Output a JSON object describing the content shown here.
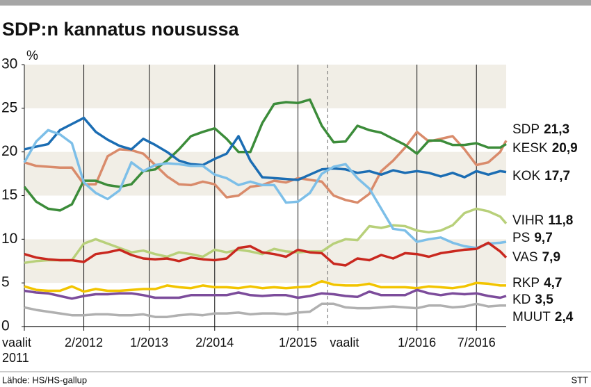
{
  "chart_data": {
    "type": "line",
    "title": "SDP:n kannatus nousussa",
    "y_unit": "%",
    "source": "Lähde: HS/HS-gallup",
    "credit": "STT",
    "x": [
      0,
      2,
      4,
      6,
      8,
      10,
      12,
      14,
      16,
      18,
      20,
      22,
      24,
      26,
      28,
      30,
      32,
      34,
      36,
      38,
      40,
      42,
      44,
      46,
      48,
      50,
      52,
      54,
      56,
      58,
      60,
      62,
      64,
      66,
      68,
      70,
      72,
      74,
      76,
      78,
      80,
      81
    ],
    "xlim": [
      0,
      81
    ],
    "xticks": [
      {
        "value": 0,
        "label": "vaalit 2011"
      },
      {
        "value": 10,
        "label": "2/2012"
      },
      {
        "value": 21,
        "label": "1/2013"
      },
      {
        "value": 32,
        "label": "2/2014"
      },
      {
        "value": 46,
        "label": "1/2015"
      },
      {
        "value": 51,
        "label": "vaalit",
        "dashed": true
      },
      {
        "value": 66,
        "label": "1/2016"
      },
      {
        "value": 76,
        "label": "7/2016"
      }
    ],
    "ylim": [
      0,
      30
    ],
    "yticks": [
      0,
      5,
      10,
      15,
      20,
      25,
      30
    ],
    "series": [
      {
        "name": "SDP",
        "color": "#d98b6b",
        "values": [
          18.8,
          18.4,
          18.3,
          18.2,
          18.2,
          16.3,
          16.3,
          19.5,
          20.3,
          20.2,
          19.8,
          18.5,
          17.2,
          16.3,
          16.2,
          16.6,
          16.3,
          14.8,
          15.0,
          16.0,
          16.2,
          16.7,
          16.5,
          17.0,
          16.8,
          16.6,
          15.0,
          14.5,
          14.2,
          15.2,
          17.8,
          19.0,
          20.5,
          22.3,
          21.2,
          21.5,
          21.8,
          20.3,
          18.5,
          18.8,
          20.0,
          21.3
        ],
        "value_labels": [
          null,
          null,
          null,
          null,
          null,
          null,
          null,
          null,
          null,
          null,
          null,
          null,
          null,
          null,
          null,
          null,
          null,
          null,
          null,
          null,
          null,
          null,
          null,
          null,
          null,
          null,
          null,
          null,
          null,
          null,
          null,
          null,
          null,
          null,
          null,
          null,
          null,
          null,
          null,
          null,
          null,
          "21,3"
        ]
      },
      {
        "name": "KESK",
        "color": "#3c8c3a",
        "values": [
          16.0,
          14.3,
          13.5,
          13.3,
          14.0,
          16.7,
          16.7,
          16.2,
          16.0,
          16.3,
          17.8,
          18.0,
          19.0,
          20.3,
          21.8,
          22.3,
          22.7,
          21.5,
          20.0,
          20.0,
          23.3,
          25.5,
          25.7,
          25.6,
          26.0,
          23.0,
          21.1,
          21.2,
          23.0,
          22.5,
          22.2,
          21.5,
          20.8,
          19.8,
          21.3,
          21.3,
          20.8,
          20.8,
          21.0,
          20.5,
          20.5,
          20.9
        ],
        "value_labels": [
          null,
          null,
          null,
          null,
          null,
          null,
          null,
          null,
          null,
          null,
          null,
          null,
          null,
          null,
          null,
          null,
          null,
          null,
          null,
          null,
          null,
          null,
          null,
          null,
          null,
          null,
          null,
          null,
          null,
          null,
          null,
          null,
          null,
          null,
          null,
          null,
          null,
          null,
          null,
          null,
          null,
          "20,9"
        ]
      },
      {
        "name": "KOK",
        "color": "#1b6db3",
        "values": [
          20.3,
          20.6,
          20.9,
          22.5,
          23.2,
          23.9,
          22.3,
          21.4,
          20.7,
          20.3,
          21.5,
          20.8,
          20.0,
          19.0,
          18.6,
          18.5,
          19.2,
          19.8,
          21.8,
          19.0,
          17.1,
          17.0,
          16.9,
          16.8,
          17.4,
          18.0,
          18.1,
          18.0,
          17.6,
          17.8,
          17.4,
          17.9,
          17.6,
          17.8,
          17.6,
          17.2,
          17.6,
          17.1,
          17.8,
          17.4,
          17.8,
          17.7
        ],
        "value_labels": [
          null,
          null,
          null,
          null,
          null,
          null,
          null,
          null,
          null,
          null,
          null,
          null,
          null,
          null,
          null,
          null,
          null,
          null,
          null,
          null,
          null,
          null,
          null,
          null,
          null,
          null,
          null,
          null,
          null,
          null,
          null,
          null,
          null,
          null,
          null,
          null,
          null,
          null,
          null,
          null,
          null,
          "17,7"
        ]
      },
      {
        "name": "VIHR",
        "color": "#b8d07a",
        "values": [
          7.3,
          7.5,
          7.6,
          7.6,
          7.6,
          9.5,
          10.0,
          9.5,
          9.0,
          8.5,
          8.7,
          8.3,
          8.0,
          8.5,
          8.3,
          8.0,
          8.8,
          8.5,
          8.8,
          8.6,
          8.3,
          8.9,
          8.6,
          8.5,
          8.6,
          8.6,
          9.5,
          10.0,
          9.9,
          11.5,
          11.3,
          11.6,
          11.5,
          11.0,
          10.8,
          11.0,
          11.6,
          13.0,
          13.5,
          13.2,
          12.6,
          11.8
        ],
        "value_labels": [
          null,
          null,
          null,
          null,
          null,
          null,
          null,
          null,
          null,
          null,
          null,
          null,
          null,
          null,
          null,
          null,
          null,
          null,
          null,
          null,
          null,
          null,
          null,
          null,
          null,
          null,
          null,
          null,
          null,
          null,
          null,
          null,
          null,
          null,
          null,
          null,
          null,
          null,
          null,
          null,
          null,
          "11,8"
        ]
      },
      {
        "name": "PS",
        "color": "#7dbfe8",
        "values": [
          18.8,
          21.2,
          22.5,
          22.0,
          21.0,
          16.5,
          15.3,
          14.6,
          15.6,
          18.8,
          17.8,
          18.5,
          18.7,
          18.6,
          18.4,
          18.4,
          17.4,
          17.0,
          16.2,
          16.6,
          16.2,
          16.2,
          14.2,
          14.3,
          15.3,
          17.5,
          18.3,
          18.6,
          17.0,
          15.8,
          13.5,
          11.2,
          11.0,
          9.7,
          10.0,
          10.2,
          9.6,
          9.2,
          9.0,
          9.5,
          9.6,
          9.7
        ],
        "value_labels": [
          null,
          null,
          null,
          null,
          null,
          null,
          null,
          null,
          null,
          null,
          null,
          null,
          null,
          null,
          null,
          null,
          null,
          null,
          null,
          null,
          null,
          null,
          null,
          null,
          null,
          null,
          null,
          null,
          null,
          null,
          null,
          null,
          null,
          null,
          null,
          null,
          null,
          null,
          null,
          null,
          null,
          "9,7"
        ]
      },
      {
        "name": "VAS",
        "color": "#c9281f",
        "values": [
          8.3,
          7.9,
          7.7,
          7.6,
          7.6,
          7.4,
          8.3,
          8.5,
          8.8,
          8.2,
          7.8,
          7.7,
          7.8,
          7.5,
          7.9,
          7.7,
          7.6,
          7.8,
          9.0,
          9.2,
          8.5,
          8.3,
          8.0,
          8.8,
          8.5,
          8.4,
          7.2,
          7.0,
          7.8,
          7.6,
          8.2,
          7.8,
          8.4,
          8.3,
          8.0,
          8.4,
          8.6,
          8.8,
          8.9,
          9.6,
          8.6,
          7.9
        ],
        "value_labels": [
          null,
          null,
          null,
          null,
          null,
          null,
          null,
          null,
          null,
          null,
          null,
          null,
          null,
          null,
          null,
          null,
          null,
          null,
          null,
          null,
          null,
          null,
          null,
          null,
          null,
          null,
          null,
          null,
          null,
          null,
          null,
          null,
          null,
          null,
          null,
          null,
          null,
          null,
          null,
          null,
          null,
          "7,9"
        ]
      },
      {
        "name": "RKP",
        "color": "#f2c400",
        "values": [
          4.6,
          4.2,
          4.1,
          4.1,
          4.6,
          4.0,
          4.3,
          4.1,
          4.1,
          4.2,
          4.3,
          4.3,
          4.7,
          4.5,
          4.4,
          4.7,
          4.5,
          4.5,
          4.4,
          4.6,
          4.4,
          4.5,
          4.4,
          4.5,
          4.6,
          5.2,
          4.8,
          4.7,
          4.7,
          4.9,
          4.5,
          4.5,
          4.5,
          4.4,
          4.6,
          4.5,
          4.4,
          4.6,
          5.0,
          4.9,
          4.7,
          4.7
        ],
        "value_labels": [
          null,
          null,
          null,
          null,
          null,
          null,
          null,
          null,
          null,
          null,
          null,
          null,
          null,
          null,
          null,
          null,
          null,
          null,
          null,
          null,
          null,
          null,
          null,
          null,
          null,
          null,
          null,
          null,
          null,
          null,
          null,
          null,
          null,
          null,
          null,
          null,
          null,
          null,
          null,
          null,
          null,
          "4,7"
        ]
      },
      {
        "name": "KD",
        "color": "#7c4c9b",
        "values": [
          4.1,
          3.9,
          3.8,
          3.5,
          3.2,
          3.5,
          3.7,
          3.7,
          3.8,
          3.8,
          3.6,
          3.3,
          3.3,
          3.3,
          3.6,
          3.6,
          3.6,
          3.6,
          3.9,
          3.6,
          3.5,
          3.6,
          3.6,
          3.3,
          3.5,
          3.8,
          3.7,
          3.5,
          3.4,
          4.0,
          3.6,
          3.6,
          3.6,
          4.2,
          3.8,
          3.6,
          3.8,
          3.7,
          3.8,
          3.5,
          3.3,
          3.5
        ],
        "value_labels": [
          null,
          null,
          null,
          null,
          null,
          null,
          null,
          null,
          null,
          null,
          null,
          null,
          null,
          null,
          null,
          null,
          null,
          null,
          null,
          null,
          null,
          null,
          null,
          null,
          null,
          null,
          null,
          null,
          null,
          null,
          null,
          null,
          null,
          null,
          null,
          null,
          null,
          null,
          null,
          null,
          null,
          "3,5"
        ]
      },
      {
        "name": "MUUT",
        "color": "#b0b0b0",
        "values": [
          2.2,
          1.9,
          1.7,
          1.5,
          1.3,
          1.3,
          1.4,
          1.4,
          1.3,
          1.3,
          1.4,
          1.1,
          1.1,
          1.3,
          1.4,
          1.3,
          1.5,
          1.5,
          1.6,
          1.4,
          1.5,
          1.5,
          1.4,
          1.6,
          1.7,
          2.6,
          2.6,
          2.2,
          2.1,
          2.1,
          2.2,
          2.3,
          2.2,
          2.1,
          2.4,
          2.4,
          2.2,
          2.3,
          2.6,
          2.3,
          2.4,
          2.4
        ],
        "value_labels": [
          null,
          null,
          null,
          null,
          null,
          null,
          null,
          null,
          null,
          null,
          null,
          null,
          null,
          null,
          null,
          null,
          null,
          null,
          null,
          null,
          null,
          null,
          null,
          null,
          null,
          null,
          null,
          null,
          null,
          null,
          null,
          null,
          null,
          null,
          null,
          null,
          null,
          null,
          null,
          null,
          null,
          "2,4"
        ]
      }
    ]
  }
}
